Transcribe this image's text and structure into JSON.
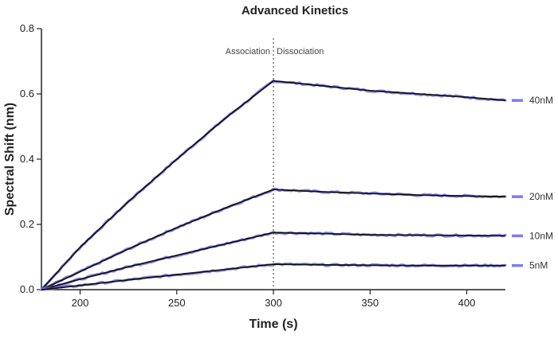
{
  "chart_data": {
    "type": "line",
    "title": "Advanced Kinetics",
    "xlabel": "Time (s)",
    "ylabel": "Spectral Shift (nm)",
    "xlim": [
      180,
      420
    ],
    "ylim": [
      0,
      0.8
    ],
    "x_ticks": [
      200,
      250,
      300,
      350,
      400
    ],
    "y_ticks": [
      0.0,
      0.2,
      0.4,
      0.6,
      0.8
    ],
    "y_tick_labels": [
      "0.0",
      "0.2",
      "0.4",
      "0.6",
      "0.8"
    ],
    "phase_boundary_x": 300,
    "phase_labels": {
      "association": "Association",
      "dissociation": "Dissociation"
    },
    "grid": false,
    "legend_position": "right",
    "colors": {
      "measured": "#7b7cf0",
      "fit": "#111111"
    },
    "series": [
      {
        "name": "40nM",
        "points": [
          [
            180,
            0.0
          ],
          [
            200,
            0.13
          ],
          [
            225,
            0.27
          ],
          [
            250,
            0.4
          ],
          [
            275,
            0.525
          ],
          [
            300,
            0.64
          ],
          [
            325,
            0.625
          ],
          [
            350,
            0.61
          ],
          [
            375,
            0.6
          ],
          [
            400,
            0.59
          ],
          [
            420,
            0.58
          ]
        ]
      },
      {
        "name": "20nM",
        "points": [
          [
            180,
            0.0
          ],
          [
            200,
            0.055
          ],
          [
            225,
            0.125
          ],
          [
            250,
            0.19
          ],
          [
            275,
            0.25
          ],
          [
            300,
            0.307
          ],
          [
            325,
            0.3
          ],
          [
            350,
            0.295
          ],
          [
            375,
            0.29
          ],
          [
            400,
            0.287
          ],
          [
            420,
            0.285
          ]
        ]
      },
      {
        "name": "10nM",
        "points": [
          [
            180,
            0.0
          ],
          [
            200,
            0.032
          ],
          [
            225,
            0.07
          ],
          [
            250,
            0.105
          ],
          [
            275,
            0.14
          ],
          [
            300,
            0.175
          ],
          [
            325,
            0.172
          ],
          [
            350,
            0.168
          ],
          [
            375,
            0.167
          ],
          [
            400,
            0.166
          ],
          [
            420,
            0.165
          ]
        ]
      },
      {
        "name": "5nM",
        "points": [
          [
            180,
            0.0
          ],
          [
            200,
            0.013
          ],
          [
            225,
            0.03
          ],
          [
            250,
            0.046
          ],
          [
            275,
            0.062
          ],
          [
            300,
            0.078
          ],
          [
            325,
            0.076
          ],
          [
            350,
            0.075
          ],
          [
            375,
            0.074
          ],
          [
            400,
            0.074
          ],
          [
            420,
            0.074
          ]
        ]
      }
    ]
  }
}
